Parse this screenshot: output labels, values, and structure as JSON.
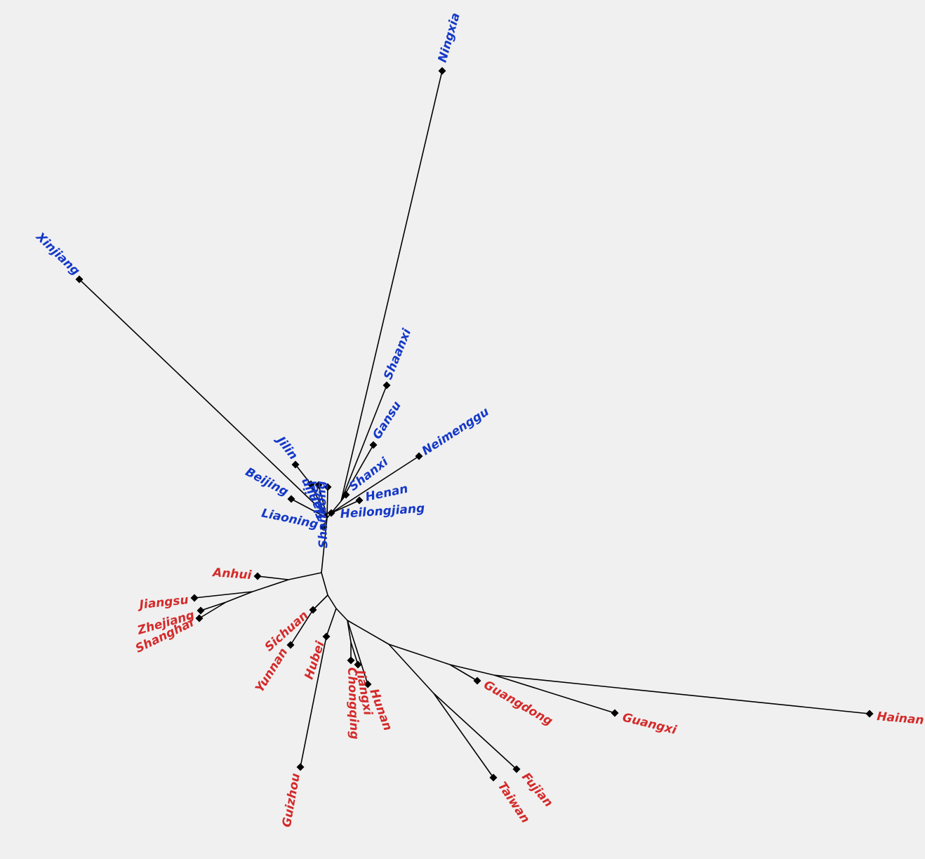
{
  "colors": {
    "north": "#1438c8",
    "south": "#d42a2a",
    "edges": "#000000",
    "background": "#f0f0f0"
  },
  "groups": {
    "north": [
      "Ningxia",
      "Xinjiang",
      "Shaanxi",
      "Gansu",
      "Neimenggu",
      "Shanxi",
      "Henan",
      "Heilongjiang",
      "Shandong",
      "Hebei",
      "Tianjin",
      "Jilin",
      "Beijing",
      "Liaoning"
    ],
    "south": [
      "Anhui",
      "Jiangsu",
      "Zhejiang",
      "Shanghai",
      "Sichuan",
      "Yunnan",
      "Hubei",
      "Guizhou",
      "Chongqing",
      "Jiangxi",
      "Hunan",
      "Guangdong",
      "Guangxi",
      "Hainan",
      "Fujian",
      "Taiwan"
    ]
  }
}
